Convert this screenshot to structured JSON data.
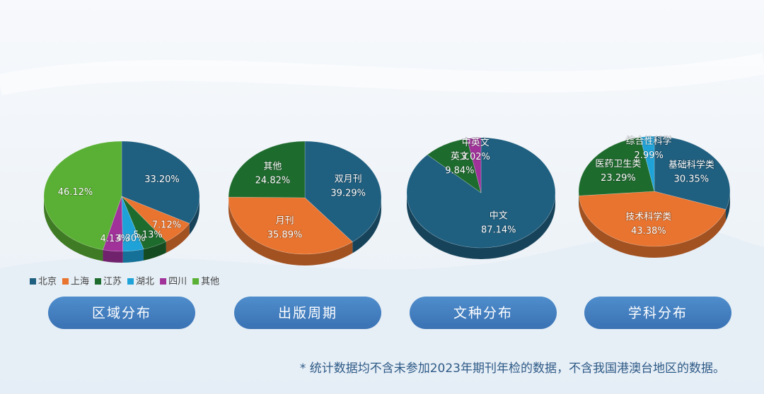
{
  "chart_data": [
    {
      "type": "pie",
      "title": "区域分布",
      "categories": [
        "北京",
        "上海",
        "江苏",
        "湖北",
        "四川",
        "其他"
      ],
      "values": [
        33.2,
        7.12,
        5.13,
        4.3,
        4.13,
        46.12
      ],
      "value_labels": [
        "33.20%",
        "7.12%",
        "5.13%",
        "4.30%",
        "4.13%",
        "46.12%"
      ],
      "colors": [
        "#1f5f80",
        "#e8742f",
        "#1e6b2e",
        "#1ea2d8",
        "#a0329a",
        "#5ab034"
      ],
      "legend": true
    },
    {
      "type": "pie",
      "title": "出版周期",
      "categories": [
        "双月刊",
        "月刊",
        "其他"
      ],
      "values": [
        39.29,
        35.89,
        24.82
      ],
      "value_labels": [
        "39.29%",
        "35.89%",
        "24.82%"
      ],
      "colors": [
        "#1f5f80",
        "#e8742f",
        "#1e6b2e"
      ],
      "legend": false
    },
    {
      "type": "pie",
      "title": "文种分布",
      "categories": [
        "中文",
        "英文",
        "中英文"
      ],
      "values": [
        87.14,
        9.84,
        3.02
      ],
      "value_labels": [
        "87.14%",
        "9.84%",
        "3.02%"
      ],
      "colors": [
        "#1f5f80",
        "#1e6b2e",
        "#a0329a"
      ],
      "legend": false
    },
    {
      "type": "pie",
      "title": "学科分布",
      "categories": [
        "基础科学类",
        "技术科学类",
        "医药卫生类",
        "综合性科学"
      ],
      "values": [
        30.35,
        43.38,
        23.29,
        2.99
      ],
      "value_labels": [
        "30.35%",
        "43.38%",
        "23.29%",
        "2.99%"
      ],
      "colors": [
        "#1f5f80",
        "#e8742f",
        "#1e6b2e",
        "#1ea2d8"
      ],
      "legend": false
    }
  ],
  "footnote": "* 统计数据均不含未参加2023年期刊年检的数据，不含我国港澳台地区的数据。"
}
